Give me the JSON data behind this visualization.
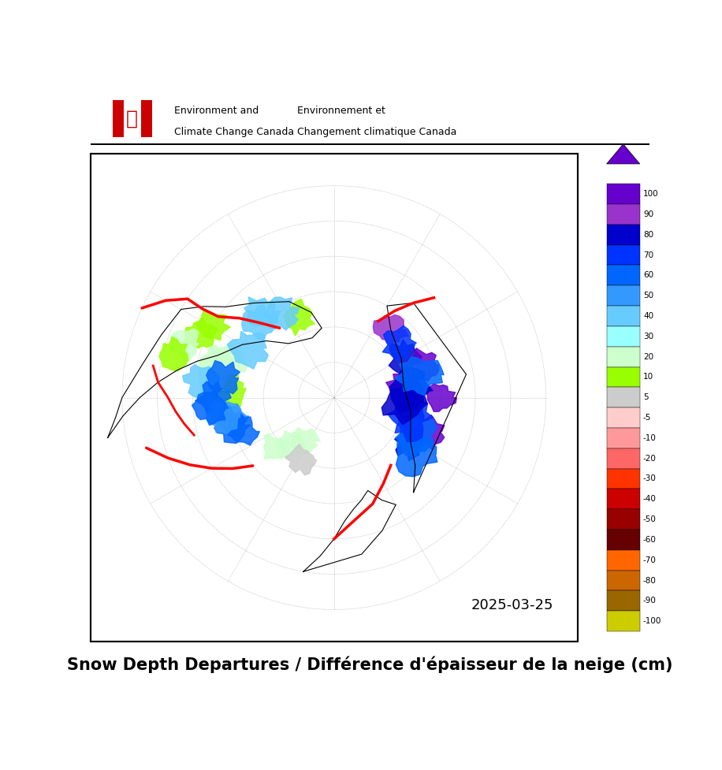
{
  "title": "Snow Depth Departures / Différence d'épaisseur de la neige (cm)",
  "date_label": "2025-03-25",
  "header_line1_en": "Environment and",
  "header_line2_en": "Climate Change Canada",
  "header_line1_fr": "Environnement et",
  "header_line2_fr": "Changement climatique Canada",
  "colorbar_levels": [
    100,
    90,
    80,
    70,
    60,
    50,
    40,
    30,
    20,
    10,
    5,
    -5,
    -10,
    -20,
    -30,
    -40,
    -50,
    -60,
    -70,
    -80,
    -90,
    -100
  ],
  "colorbar_colors": [
    "#6600CC",
    "#9933CC",
    "#0000CC",
    "#0033FF",
    "#0066FF",
    "#3399FF",
    "#66CCFF",
    "#99FFFF",
    "#CCFFCC",
    "#99FF00",
    "#CCCCCC",
    "#FFCCCC",
    "#FF9999",
    "#FF6666",
    "#FF3300",
    "#CC0000",
    "#990000",
    "#660000",
    "#FF6600",
    "#CC6600",
    "#996600",
    "#CCCC00"
  ],
  "colorbar_tick_labels": [
    "100",
    "90",
    "80",
    "70",
    "60",
    "50",
    "40",
    "30",
    "20",
    "10",
    "5",
    "-5",
    "-10",
    "-20",
    "-30",
    "-40",
    "-50",
    "-60",
    "-70",
    "-80",
    "-90",
    "-100"
  ],
  "fig_width": 9.16,
  "fig_height": 9.77,
  "background_color": "#FFFFFF",
  "map_bg_color": "#FFFFFF",
  "header_bg_color": "#FFFFFF",
  "title_fontsize": 16,
  "header_fontsize": 9
}
